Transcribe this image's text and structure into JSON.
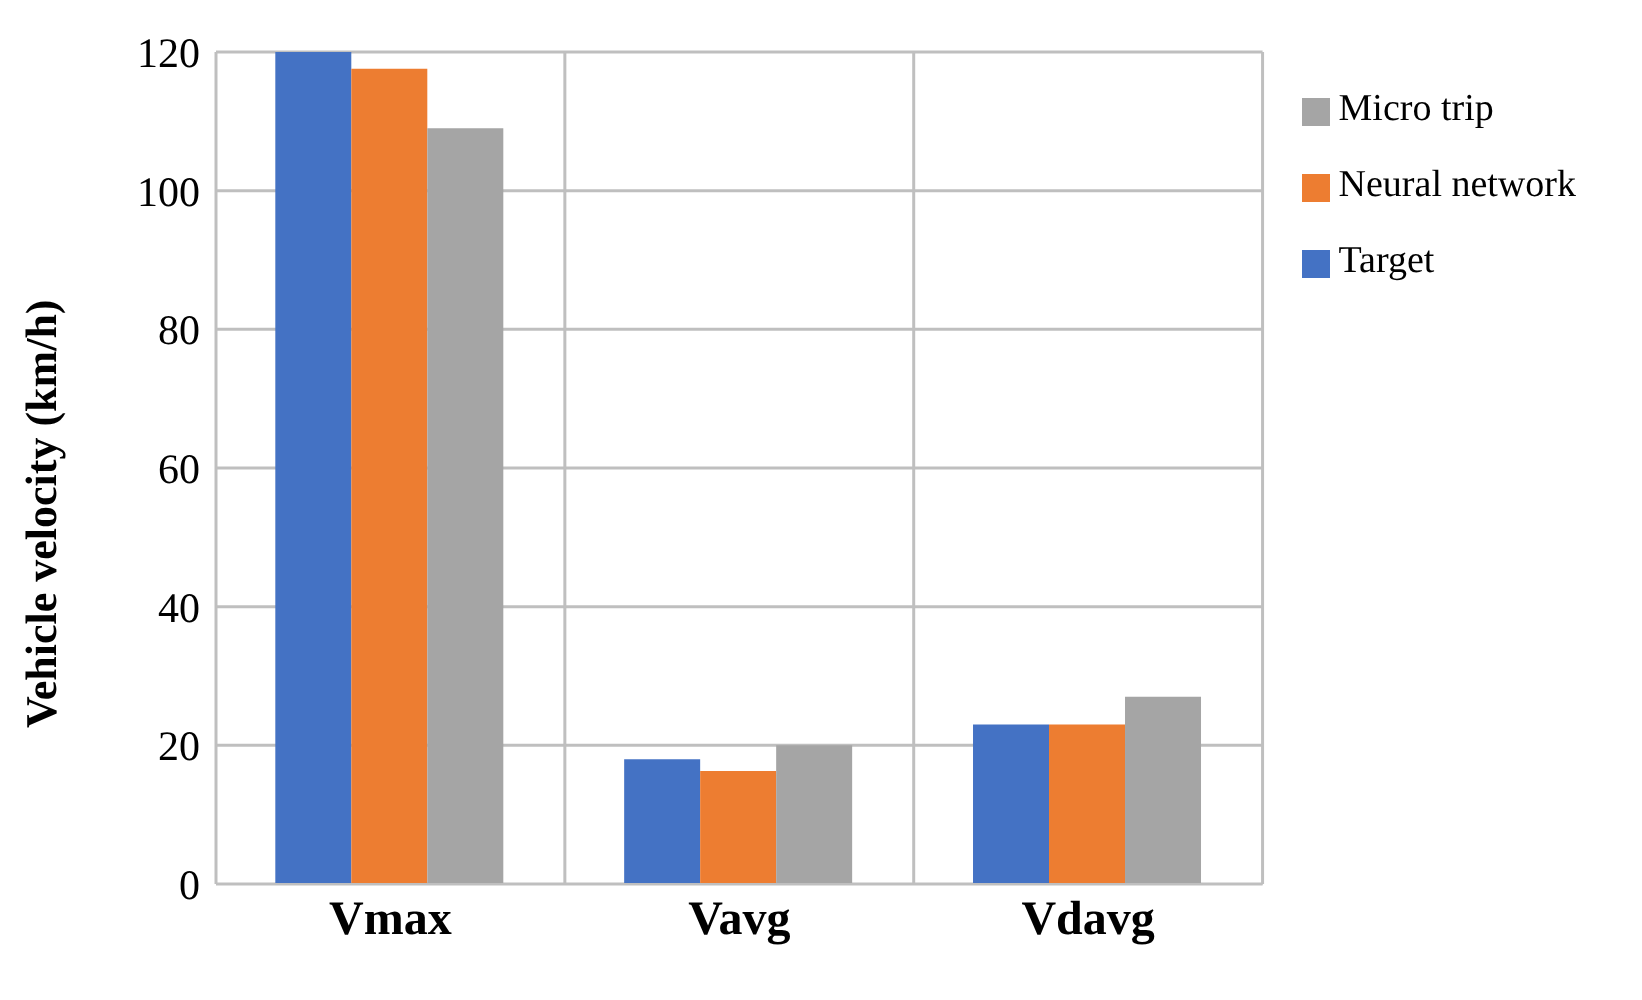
{
  "chart_data": {
    "type": "bar",
    "ylabel": "Vehicle velocity (km/h)",
    "categories": [
      "Vmax",
      "Vavg",
      "Vdavg"
    ],
    "series": [
      {
        "name": "Target",
        "color": "#4472c4",
        "values": [
          120,
          18,
          23
        ]
      },
      {
        "name": "Neural network",
        "color": "#ed7d31",
        "values": [
          117.6,
          16.3,
          23
        ]
      },
      {
        "name": "Micro trip",
        "color": "#a5a5a5",
        "values": [
          109,
          20,
          27
        ]
      }
    ],
    "ylim": [
      0,
      120
    ],
    "yticks": [
      0,
      20,
      40,
      60,
      80,
      100,
      120
    ],
    "grid": true,
    "legend": "top right"
  }
}
